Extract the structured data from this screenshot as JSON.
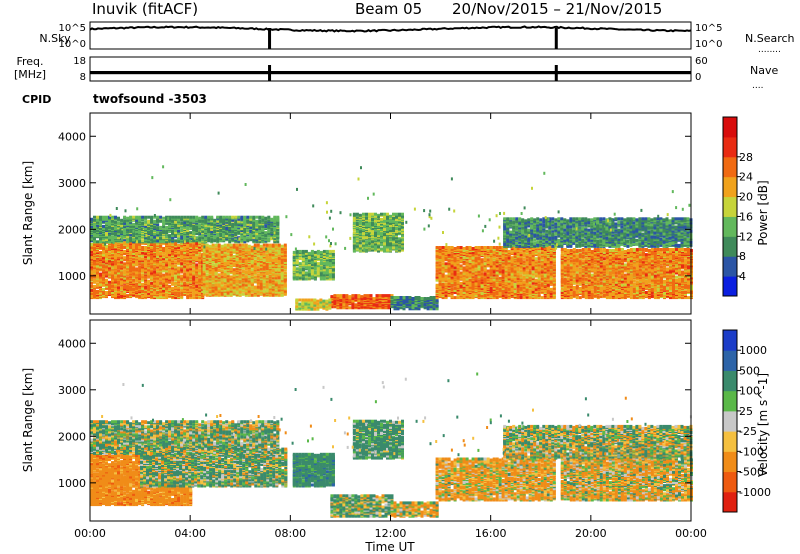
{
  "header": {
    "station": "Inuvik (fitACF)",
    "beam": "Beam 05",
    "date_range": "20/Nov/2015 – 21/Nov/2015"
  },
  "panels": {
    "nsky_label": "N.Sky",
    "nsearch_label": "N.Search",
    "nsearch_dots": "........",
    "freq_label_1": "Freq.",
    "freq_label_2": "[MHz]",
    "nave_label": "Nave",
    "nave_dots": "....",
    "cpid_label": "CPID",
    "cpid_value": "twofsound -3503"
  },
  "chart_data": [
    {
      "type": "line",
      "name": "noise",
      "left_axis_label": "N.Sky",
      "right_axis_label": "N.Search",
      "left_ticks": [
        "10^5",
        "10^0"
      ],
      "right_ticks": [
        "10^5",
        "10^0"
      ],
      "ylim_log10": [
        0,
        5
      ],
      "nsky_log10_level": 3.7,
      "dropouts_ut_hours": [
        7.15,
        18.6
      ]
    },
    {
      "type": "line",
      "name": "frequency_nave",
      "left_axis_label": "Freq. [MHz]",
      "right_axis_label": "Nave",
      "left_ticks": [
        "18",
        "8"
      ],
      "right_ticks": [
        "60",
        "0"
      ],
      "freq_ylim": [
        8,
        18
      ],
      "nave_ylim": [
        0,
        60
      ],
      "nave_level": 22,
      "dropouts_ut_hours": [
        7.15,
        18.6
      ]
    },
    {
      "type": "heatmap",
      "parameter": "Power",
      "xlabel": "",
      "ylabel": "Slant Range [km]",
      "xlim_ut_hours": [
        0,
        24
      ],
      "ylim_km": [
        180,
        4500
      ],
      "yticks": [
        1000,
        2000,
        3000,
        4000
      ],
      "colorbar_label": "Power [dB]",
      "colorbar_ticks": [
        "4",
        "8",
        "12",
        "16",
        "20",
        "24",
        "28"
      ],
      "colorbar_colors": [
        "#0b1fe0",
        "#2b55a5",
        "#3f8a5a",
        "#62b85c",
        "#c6d43a",
        "#f0a21c",
        "#f06a12",
        "#e92b12",
        "#d80c0c"
      ],
      "regions": [
        {
          "t0": 0.0,
          "t1": 4.5,
          "r0": 500,
          "r1": 1700,
          "dB": 24
        },
        {
          "t0": 4.5,
          "t1": 7.8,
          "r0": 550,
          "r1": 1650,
          "dB": 22
        },
        {
          "t0": 8.1,
          "t1": 9.7,
          "r0": 900,
          "r1": 1500,
          "dB": 14
        },
        {
          "t0": 9.6,
          "t1": 12.0,
          "r0": 280,
          "r1": 560,
          "dB": 27
        },
        {
          "t0": 8.2,
          "t1": 9.6,
          "r0": 250,
          "r1": 450,
          "dB": 18
        },
        {
          "t0": 12.0,
          "t1": 13.8,
          "r0": 260,
          "r1": 520,
          "dB": 9
        },
        {
          "t0": 13.8,
          "t1": 18.5,
          "r0": 500,
          "r1": 1600,
          "dB": 24
        },
        {
          "t0": 18.8,
          "t1": 24.0,
          "r0": 500,
          "r1": 1550,
          "dB": 24
        },
        {
          "t0": 0.0,
          "t1": 7.5,
          "r0": 1700,
          "r1": 2250,
          "dB": 12
        },
        {
          "t0": 10.5,
          "t1": 12.5,
          "r0": 1500,
          "r1": 2300,
          "dB": 14
        },
        {
          "t0": 16.5,
          "t1": 24.0,
          "r0": 1600,
          "r1": 2200,
          "dB": 10
        }
      ]
    },
    {
      "type": "heatmap",
      "parameter": "Velocity",
      "xlabel": "Time UT",
      "ylabel": "Slant Range [km]",
      "xlim_ut_hours": [
        0,
        24
      ],
      "ylim_km": [
        180,
        4500
      ],
      "xticks": [
        "00:00",
        "04:00",
        "08:00",
        "12:00",
        "16:00",
        "20:00",
        "00:00"
      ],
      "yticks": [
        1000,
        2000,
        3000,
        4000
      ],
      "colorbar_label": "Velocity [m s^-1]",
      "colorbar_ticks": [
        "1000",
        "500",
        "100",
        "25",
        "-25",
        "-100",
        "-500",
        "-1000"
      ],
      "colorbar_colors": [
        "#1c3dc8",
        "#2d64a8",
        "#3a8a6c",
        "#5ab848",
        "#c8c8c8",
        "#f5c040",
        "#f08c18",
        "#ee5a10",
        "#e02010"
      ],
      "regions": [
        {
          "t0": 0.0,
          "t1": 4.0,
          "r0": 500,
          "r1": 1600,
          "v": -300
        },
        {
          "t0": 2.0,
          "t1": 7.8,
          "r0": 900,
          "r1": 1700,
          "v": 100
        },
        {
          "t0": 8.1,
          "t1": 9.7,
          "r0": 900,
          "r1": 1600,
          "v": 300
        },
        {
          "t0": 9.6,
          "t1": 12.0,
          "r0": 250,
          "r1": 700,
          "v": 100
        },
        {
          "t0": 12.0,
          "t1": 13.8,
          "r0": 250,
          "r1": 550,
          "v": -60
        },
        {
          "t0": 13.8,
          "t1": 18.5,
          "r0": 600,
          "r1": 1500,
          "v": -120
        },
        {
          "t0": 18.8,
          "t1": 24.0,
          "r0": 600,
          "r1": 1500,
          "v": -80
        },
        {
          "t0": 0.0,
          "t1": 7.5,
          "r0": 1600,
          "r1": 2300,
          "v": 80
        },
        {
          "t0": 10.5,
          "t1": 12.5,
          "r0": 1500,
          "r1": 2300,
          "v": 200
        },
        {
          "t0": 16.5,
          "t1": 24.0,
          "r0": 1500,
          "r1": 2200,
          "v": 40
        }
      ]
    }
  ]
}
